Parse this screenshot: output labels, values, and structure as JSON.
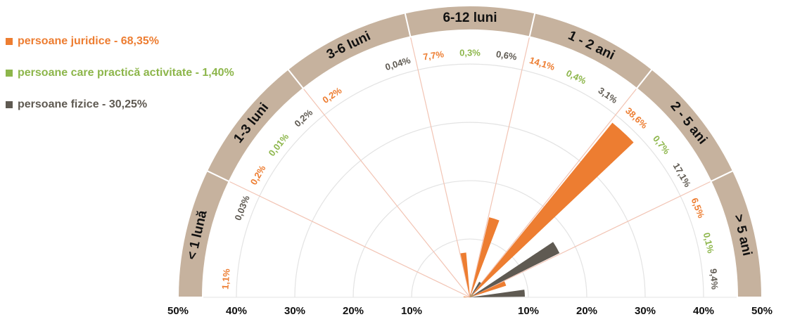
{
  "chart_data": {
    "type": "polar-bar",
    "legend_position": "top-left",
    "series": [
      {
        "name": "persoane juridice - 68,35%",
        "color": "#ED7D31",
        "values": [
          1.1,
          0.2,
          0.2,
          7.7,
          14.1,
          38.6,
          6.5
        ],
        "labels": [
          "1,1%",
          "0,2%",
          "0,2%",
          "7,7%",
          "14,1%",
          "38,6%",
          "6,5%"
        ]
      },
      {
        "name": "persoane care practică activitate - 1,40%",
        "color": "#8DB64B",
        "values": [
          0,
          0.01,
          0,
          0.3,
          0.4,
          0.7,
          0.1
        ],
        "labels": [
          "",
          "0,01%",
          "",
          "0,3%",
          "0,4%",
          "0,7%",
          "0,1%"
        ]
      },
      {
        "name": "persoane fizice - 30,25%",
        "color": "#5F5A52",
        "values": [
          0.03,
          0.2,
          0.04,
          0.6,
          3.1,
          17.1,
          9.4
        ],
        "labels": [
          "0,03%",
          "0,2%",
          "0,04%",
          "0,6%",
          "3,1%",
          "17,1%",
          "9,4%"
        ]
      }
    ],
    "categories": [
      "< 1 lună",
      "1-3 luni",
      "3-6 luni",
      "6-12 luni",
      "1 - 2 ani",
      "2 - 5 ani",
      "> 5 ani"
    ],
    "radial_range": [
      0,
      50
    ],
    "radial_ticks": [
      "50%",
      "40%",
      "30%",
      "20%",
      "10%",
      "10%",
      "20%",
      "30%",
      "40%",
      "50%"
    ],
    "grid": true,
    "colors": {
      "band": "#C6B29E",
      "gridline": "#E3E3E3",
      "spoke": "#F2C4B4",
      "band_border": "#ffffff"
    }
  }
}
